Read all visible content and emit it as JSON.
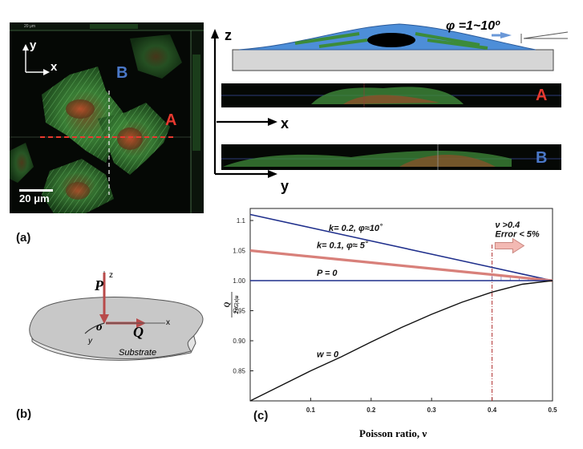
{
  "panel_a": {
    "label": "(a)",
    "scalebar_label": "20 μm",
    "tiny_scale_label": "20 μm",
    "axis_x": "x",
    "axis_y": "y",
    "marker_A": "A",
    "marker_B": "B",
    "colors": {
      "line_A": "#e8392f",
      "line_B": "#e6e6e6",
      "label_A": "#e8392f",
      "label_B": "#4a78c8"
    }
  },
  "panel_schematic": {
    "axis_z": "z",
    "axis_x": "x",
    "axis_y": "y",
    "angle_label": "φ =1~10º",
    "marker_A": "A",
    "marker_B": "B",
    "colors": {
      "cell": "#4d8ed8",
      "substrate": "#d6d6d6",
      "nucleus": "#000000",
      "fibers": "#3c8b3a"
    }
  },
  "panel_b": {
    "label": "(b)",
    "force_P": "P",
    "force_Q": "Q",
    "origin": "o",
    "axis_z": "z",
    "axis_x": "x",
    "axis_y": "y",
    "substrate_label": "Substrate",
    "colors": {
      "arrows": "#b84a4a"
    }
  },
  "panel_c": {
    "label": "(c)"
  },
  "chart_data": {
    "type": "line",
    "xlabel": "Poisson ratio,  ν",
    "ylabel": "Q / 2πG|x|u",
    "xlim": [
      0,
      0.5
    ],
    "ylim": [
      0.8,
      1.12
    ],
    "xticks": [
      0.1,
      0.2,
      0.3,
      0.4,
      0.5
    ],
    "yticks": [
      0.85,
      0.9,
      0.95,
      1.0,
      1.05,
      1.1
    ],
    "ytick_labels": [
      "0.85",
      "0.90",
      "0.95",
      "1.00",
      "1.05",
      "1.1"
    ],
    "series": [
      {
        "name": "k= 0.2, φ≈10˚",
        "color": "#1f2f8c",
        "x": [
          0,
          0.1,
          0.2,
          0.3,
          0.4,
          0.45,
          0.5
        ],
        "y": [
          1.11,
          1.088,
          1.066,
          1.044,
          1.022,
          1.011,
          1.0
        ]
      },
      {
        "name": "k= 0.1, φ≈ 5˚",
        "color": "#d8807a",
        "x": [
          0,
          0.1,
          0.2,
          0.3,
          0.4,
          0.45,
          0.5
        ],
        "y": [
          1.05,
          1.04,
          1.03,
          1.02,
          1.01,
          1.005,
          1.0
        ]
      },
      {
        "name": "P = 0",
        "color": "#1f2f8c",
        "x": [
          0,
          0.5
        ],
        "y": [
          1.0,
          1.0
        ]
      },
      {
        "name": "w = 0",
        "color": "#111111",
        "x": [
          0,
          0.05,
          0.1,
          0.15,
          0.2,
          0.25,
          0.3,
          0.35,
          0.4,
          0.45,
          0.5
        ],
        "y": [
          0.8,
          0.825,
          0.85,
          0.873,
          0.898,
          0.922,
          0.944,
          0.964,
          0.981,
          0.994,
          1.0
        ]
      }
    ],
    "vline": {
      "x": 0.4,
      "color": "#b03030"
    },
    "annotations": [
      "ν >0.4",
      "Error < 5%"
    ]
  }
}
